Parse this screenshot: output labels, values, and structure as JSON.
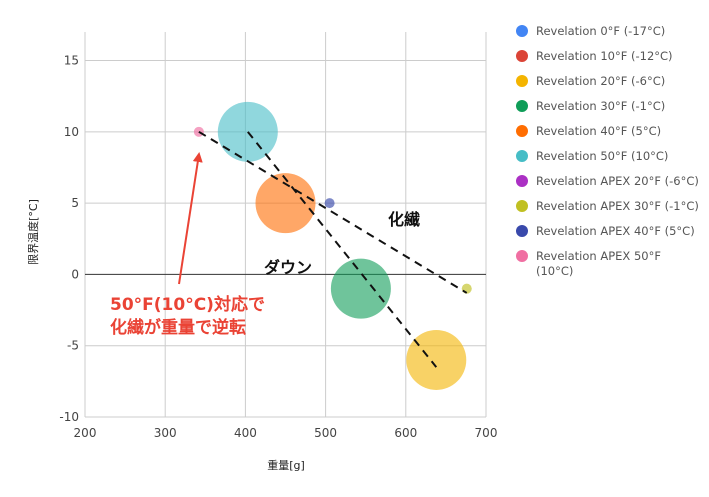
{
  "chart_data": {
    "type": "bubble",
    "xlabel": "重量[g]",
    "ylabel": "限界温度[°C]",
    "xlim": [
      200,
      700
    ],
    "ylim": [
      -10,
      17
    ],
    "x_ticks": [
      "200",
      "300",
      "400",
      "500",
      "600",
      "700"
    ],
    "y_ticks": [
      "15",
      "10",
      "5",
      "0",
      "-5",
      "-10"
    ],
    "grid": true,
    "legend_position": "right",
    "series": [
      {
        "name": "Revelation 0°F (-17°C)",
        "color": "#4285f4",
        "points": []
      },
      {
        "name": "Revelation 10°F (-12°C)",
        "color": "#db4437",
        "points": []
      },
      {
        "name": "Revelation 20°F (-6°C)",
        "color": "#f4b400",
        "points": [
          {
            "x": 638,
            "y": -6,
            "size": 10
          }
        ]
      },
      {
        "name": "Revelation 30°F (-1°C)",
        "color": "#0f9d58",
        "points": [
          {
            "x": 544,
            "y": -1,
            "size": 10
          }
        ]
      },
      {
        "name": "Revelation 40°F (5°C)",
        "color": "#ff6d01",
        "points": [
          {
            "x": 450,
            "y": 5,
            "size": 10
          }
        ]
      },
      {
        "name": "Revelation 50°F (10°C)",
        "color": "#46bdc6",
        "points": [
          {
            "x": 403,
            "y": 10,
            "size": 10
          }
        ]
      },
      {
        "name": "Revelation APEX 20°F (-6°C)",
        "color": "#ab30c4",
        "points": []
      },
      {
        "name": "Revelation APEX 30°F (-1°C)",
        "color": "#c0c022",
        "points": [
          {
            "x": 676,
            "y": -1,
            "size": 1
          }
        ]
      },
      {
        "name": "Revelation APEX 40°F (5°C)",
        "color": "#3949ab",
        "points": [
          {
            "x": 505,
            "y": 5,
            "size": 1
          }
        ]
      },
      {
        "name": "Revelation APEX 50°F (10°C)",
        "color": "#f06fa2",
        "points": [
          {
            "x": 342,
            "y": 10,
            "size": 1
          }
        ]
      }
    ],
    "trend_lines": [
      {
        "label": "ダウン",
        "from": {
          "x": 403,
          "y": 10
        },
        "to": {
          "x": 638,
          "y": -6.5
        }
      },
      {
        "label": "化繊",
        "from": {
          "x": 342,
          "y": 10
        },
        "to": {
          "x": 676,
          "y": -1.3
        }
      }
    ],
    "annotations": {
      "down_label": "ダウン",
      "synthetic_label": "化繊",
      "callout_line1": "50°F(10°C)対応で",
      "callout_line2": "化繊が重量で逆転",
      "callout_color": "#ea4335"
    }
  }
}
